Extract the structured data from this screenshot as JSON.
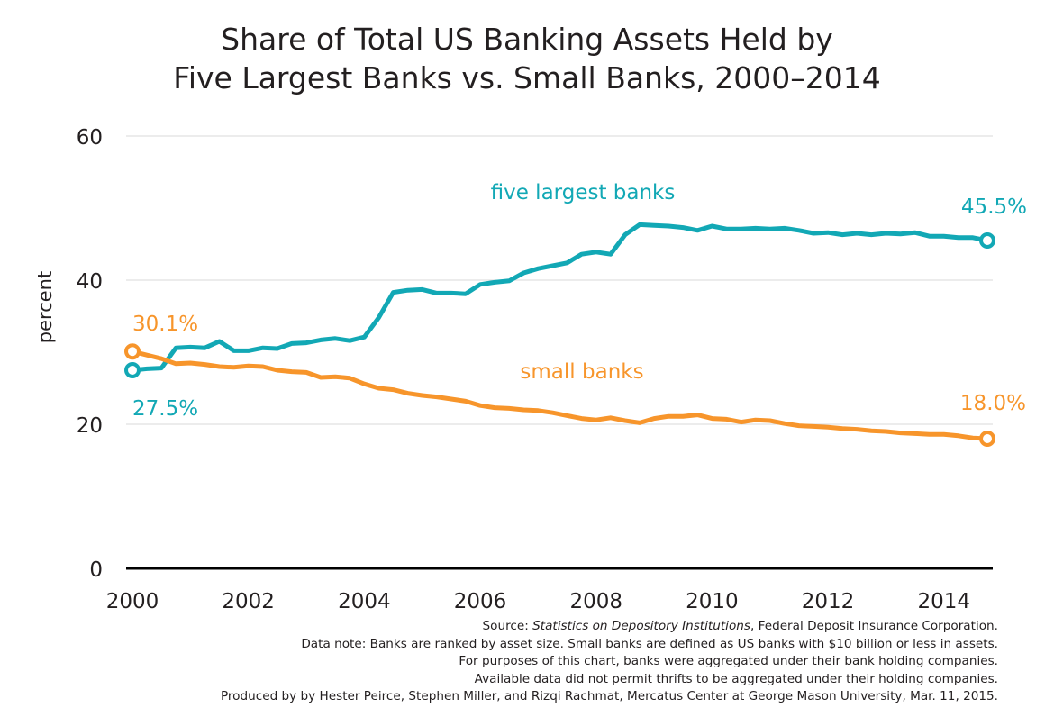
{
  "title_line1": "Share of Total US Banking Assets Held by",
  "title_line2": "Five Largest Banks vs. Small Banks, 2000–2014",
  "chart_data": {
    "type": "line",
    "ylabel": "percent",
    "xlabel": "",
    "ylim": [
      0,
      60
    ],
    "xlim": [
      2000,
      2015
    ],
    "y_ticks": [
      "0",
      "20",
      "40",
      "60"
    ],
    "x_ticks": [
      "2000",
      "2002",
      "2004",
      "2006",
      "2008",
      "2010",
      "2012",
      "2014"
    ],
    "grid": true,
    "series": [
      {
        "name": "five largest banks",
        "color": "#12a8b5",
        "x": [
          2000,
          2000.25,
          2000.5,
          2000.75,
          2001,
          2001.25,
          2001.5,
          2001.75,
          2002,
          2002.25,
          2002.5,
          2002.75,
          2003,
          2003.25,
          2003.5,
          2003.75,
          2004,
          2004.25,
          2004.5,
          2004.75,
          2005,
          2005.25,
          2005.5,
          2005.75,
          2006,
          2006.25,
          2006.5,
          2006.75,
          2007,
          2007.25,
          2007.5,
          2007.75,
          2008,
          2008.25,
          2008.5,
          2008.75,
          2009,
          2009.25,
          2009.5,
          2009.75,
          2010,
          2010.25,
          2010.5,
          2010.75,
          2011,
          2011.25,
          2011.5,
          2011.75,
          2012,
          2012.25,
          2012.5,
          2012.75,
          2013,
          2013.25,
          2013.5,
          2013.75,
          2014,
          2014.25,
          2014.5,
          2014.75
        ],
        "values": [
          27.5,
          27.7,
          27.8,
          30.6,
          30.7,
          30.6,
          31.5,
          30.2,
          30.2,
          30.6,
          30.5,
          31.2,
          31.3,
          31.7,
          31.9,
          31.6,
          32.1,
          34.8,
          38.3,
          38.6,
          38.7,
          38.2,
          38.2,
          38.1,
          39.4,
          39.7,
          39.9,
          41.0,
          41.6,
          42.0,
          42.4,
          43.6,
          43.9,
          43.6,
          46.3,
          47.7,
          47.6,
          47.5,
          47.3,
          46.9,
          47.5,
          47.1,
          47.1,
          47.2,
          47.1,
          47.2,
          46.9,
          46.5,
          46.6,
          46.3,
          46.5,
          46.3,
          46.5,
          46.4,
          46.6,
          46.1,
          46.1,
          45.9,
          45.9,
          45.5
        ],
        "start_label": "27.5%",
        "end_label": "45.5%"
      },
      {
        "name": "small banks",
        "color": "#f7952b",
        "x": [
          2000,
          2000.25,
          2000.5,
          2000.75,
          2001,
          2001.25,
          2001.5,
          2001.75,
          2002,
          2002.25,
          2002.5,
          2002.75,
          2003,
          2003.25,
          2003.5,
          2003.75,
          2004,
          2004.25,
          2004.5,
          2004.75,
          2005,
          2005.25,
          2005.5,
          2005.75,
          2006,
          2006.25,
          2006.5,
          2006.75,
          2007,
          2007.25,
          2007.5,
          2007.75,
          2008,
          2008.25,
          2008.5,
          2008.75,
          2009,
          2009.25,
          2009.5,
          2009.75,
          2010,
          2010.25,
          2010.5,
          2010.75,
          2011,
          2011.25,
          2011.5,
          2011.75,
          2012,
          2012.25,
          2012.5,
          2012.75,
          2013,
          2013.25,
          2013.5,
          2013.75,
          2014,
          2014.25,
          2014.5,
          2014.75
        ],
        "values": [
          30.1,
          29.6,
          29.1,
          28.4,
          28.5,
          28.3,
          28.0,
          27.9,
          28.1,
          28.0,
          27.5,
          27.3,
          27.2,
          26.5,
          26.6,
          26.4,
          25.6,
          25.0,
          24.8,
          24.3,
          24.0,
          23.8,
          23.5,
          23.2,
          22.6,
          22.3,
          22.2,
          22.0,
          21.9,
          21.6,
          21.2,
          20.8,
          20.6,
          20.9,
          20.5,
          20.2,
          20.8,
          21.1,
          21.1,
          21.3,
          20.8,
          20.7,
          20.3,
          20.6,
          20.5,
          20.1,
          19.8,
          19.7,
          19.6,
          19.4,
          19.3,
          19.1,
          19.0,
          18.8,
          18.7,
          18.6,
          18.6,
          18.4,
          18.1,
          18.0
        ],
        "start_label": "30.1%",
        "end_label": "18.0%"
      }
    ]
  },
  "source": {
    "prefix": "Source: ",
    "italic": "Statistics on Depository Institutions",
    "suffix": ", Federal Deposit Insurance Corporation.",
    "note1": "Data note: Banks are ranked by asset size. Small banks are defined as US banks with $10 billion or less in assets.",
    "note2": "For purposes of this chart, banks were aggregated under their bank holding companies.",
    "note3": "Available data did not permit thrifts to be aggregated under their holding companies.",
    "note4": "Produced by by Hester Peirce, Stephen Miller, and Rizqi Rachmat, Mercatus Center at George Mason University, Mar. 11, 2015."
  }
}
